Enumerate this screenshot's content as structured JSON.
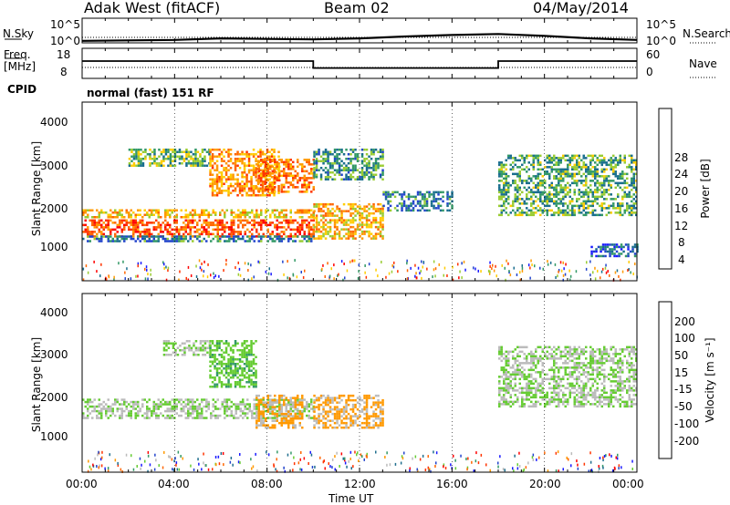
{
  "header": {
    "station": "Adak West (fitACF)",
    "beam": "Beam 02",
    "date": "04/May/2014"
  },
  "noise_panel": {
    "left_label": "N.Sky",
    "right_label": "N.Search",
    "tick_top": "10^5",
    "tick_bottom": "10^0"
  },
  "freq_panel": {
    "left_label_line1": "Freq.",
    "left_label_line2": "[MHz]",
    "right_label": "Nave",
    "left_ticks": [
      "18",
      "8"
    ],
    "right_ticks": [
      "60",
      "0"
    ]
  },
  "cpid": {
    "label": "CPID",
    "value": "normal (fast) 151 RF"
  },
  "power_panel": {
    "ylabel": "Slant Range [km]",
    "yticks": [
      "4000",
      "3000",
      "2000",
      "1000"
    ],
    "colorbar_label": "Power [dB]",
    "colorbar_ticks": [
      "28",
      "24",
      "20",
      "16",
      "12",
      "8",
      "4"
    ],
    "colorbar_colors": [
      "#ff0000",
      "#ff3300",
      "#ff6600",
      "#ff9900",
      "#ffcc00",
      "#99cc33",
      "#339966",
      "#1a6e8e",
      "#2244cc",
      "#1a1aff"
    ]
  },
  "velocity_panel": {
    "ylabel": "Slant Range [km]",
    "yticks": [
      "4000",
      "3000",
      "2000",
      "1000"
    ],
    "colorbar_label": "Velocity [m s⁻¹]",
    "colorbar_ticks": [
      "200",
      "100",
      "50",
      "15",
      "-15",
      "-50",
      "-100",
      "-200"
    ],
    "colorbar_colors": [
      "#1a1aff",
      "#2244cc",
      "#1f6e8e",
      "#339966",
      "#66cc33",
      "#bbbbbb",
      "#ff9900",
      "#ff6600",
      "#ff3300",
      "#ff0000"
    ]
  },
  "x_axis": {
    "label": "Time UT",
    "ticks": [
      "00:00",
      "04:00",
      "08:00",
      "12:00",
      "16:00",
      "20:00",
      "00:00"
    ]
  },
  "chart_data": [
    {
      "type": "line",
      "name": "noise",
      "x": [
        0,
        2,
        4,
        6,
        8,
        10,
        12,
        14,
        16,
        18,
        20,
        22,
        24
      ],
      "y_log10": [
        0.4,
        0.5,
        0.6,
        0.9,
        0.8,
        0.7,
        0.9,
        1.3,
        1.6,
        1.8,
        1.4,
        0.9,
        0.6
      ],
      "xlim": [
        0,
        24
      ],
      "ylim_log10": [
        0,
        5
      ]
    },
    {
      "type": "line",
      "name": "frequency",
      "x": [
        0,
        10,
        10,
        18,
        18,
        24
      ],
      "freq_mhz": [
        13.5,
        13.5,
        10.5,
        10.5,
        13.5,
        13.5
      ],
      "xlim": [
        0,
        24
      ],
      "ylim": [
        6,
        19
      ]
    },
    {
      "type": "heatmap",
      "name": "power",
      "xlim": [
        0,
        24
      ],
      "ylim": [
        180,
        4600
      ],
      "zlim": [
        0,
        30
      ],
      "bands": [
        {
          "t": [
            0.0,
            10.0
          ],
          "r": [
            1750,
            1950
          ],
          "z": 17
        },
        {
          "t": [
            0.0,
            10.0
          ],
          "r": [
            1300,
            1700
          ],
          "z": 24
        },
        {
          "t": [
            0.0,
            10.0
          ],
          "r": [
            1150,
            1300
          ],
          "z": 8
        },
        {
          "t": [
            2.0,
            5.5
          ],
          "r": [
            3000,
            3450
          ],
          "z": 12
        },
        {
          "t": [
            5.5,
            8.5
          ],
          "r": [
            2300,
            3450
          ],
          "z": 20
        },
        {
          "t": [
            7.5,
            10.0
          ],
          "r": [
            2400,
            3200
          ],
          "z": 22
        },
        {
          "t": [
            10.0,
            13.0
          ],
          "r": [
            1250,
            2100
          ],
          "z": 18
        },
        {
          "t": [
            10.0,
            13.0
          ],
          "r": [
            2700,
            3450
          ],
          "z": 10
        },
        {
          "t": [
            13.0,
            16.0
          ],
          "r": [
            1900,
            2400
          ],
          "z": 8
        },
        {
          "t": [
            18.0,
            24.0
          ],
          "r": [
            1800,
            3300
          ],
          "z": 11
        },
        {
          "t": [
            22.0,
            24.0
          ],
          "r": [
            800,
            1100
          ],
          "z": 6
        }
      ]
    },
    {
      "type": "heatmap",
      "name": "velocity",
      "xlim": [
        0,
        24
      ],
      "ylim": [
        180,
        4600
      ],
      "zlim": [
        -250,
        250
      ],
      "bands": [
        {
          "t": [
            0.0,
            10.0
          ],
          "r": [
            1500,
            2000
          ],
          "z": 0
        },
        {
          "t": [
            3.5,
            5.5
          ],
          "r": [
            3100,
            3450
          ],
          "z": 0
        },
        {
          "t": [
            5.5,
            7.5
          ],
          "r": [
            2300,
            3450
          ],
          "z": 30
        },
        {
          "t": [
            7.5,
            9.5
          ],
          "r": [
            1300,
            2100
          ],
          "z": -60
        },
        {
          "t": [
            10.0,
            13.0
          ],
          "r": [
            1300,
            2100
          ],
          "z": -60
        },
        {
          "t": [
            18.0,
            24.0
          ],
          "r": [
            1800,
            3300
          ],
          "z": 0
        }
      ]
    }
  ]
}
